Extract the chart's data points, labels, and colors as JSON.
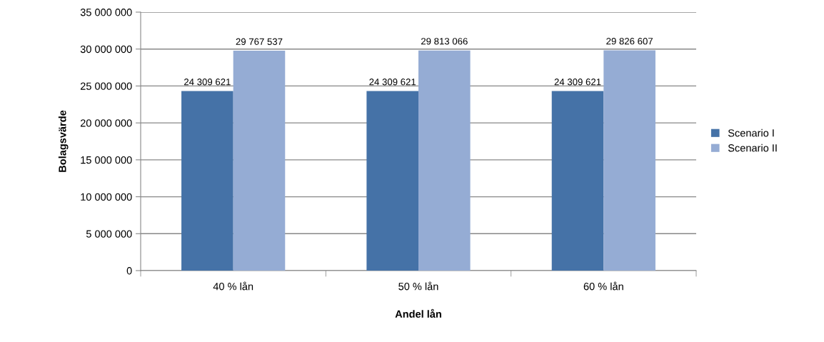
{
  "chart_data": {
    "type": "bar",
    "xlabel": "Andel lån",
    "ylabel": "Bolagsvärde",
    "categories": [
      "40 % lån",
      "50 % lån",
      "60 % lån"
    ],
    "series": [
      {
        "name": "Scenario I",
        "color": "#4572a7",
        "values": [
          24309621,
          24309621,
          24309621
        ],
        "value_labels": [
          "24 309 621",
          "24 309 621",
          "24 309 621"
        ]
      },
      {
        "name": "Scenario II",
        "color": "#95acd4",
        "values": [
          29767537,
          29813066,
          29826607
        ],
        "value_labels": [
          "29 767 537",
          "29 813 066",
          "29 826 607"
        ]
      }
    ],
    "ylim": [
      0,
      35000000
    ],
    "yticks": [
      0,
      {
        "value": 5000000,
        "label": "5 000 000"
      },
      {
        "value": 10000000,
        "label": "10 000 000"
      },
      {
        "value": 15000000,
        "label": "15 000 000"
      },
      {
        "value": 20000000,
        "label": "20 000 000"
      },
      {
        "value": 25000000,
        "label": "25 000 000"
      },
      {
        "value": 30000000,
        "label": "30 000 000"
      },
      {
        "value": 35000000,
        "label": "35 000 000"
      }
    ],
    "grid": "y",
    "legend": "right"
  }
}
